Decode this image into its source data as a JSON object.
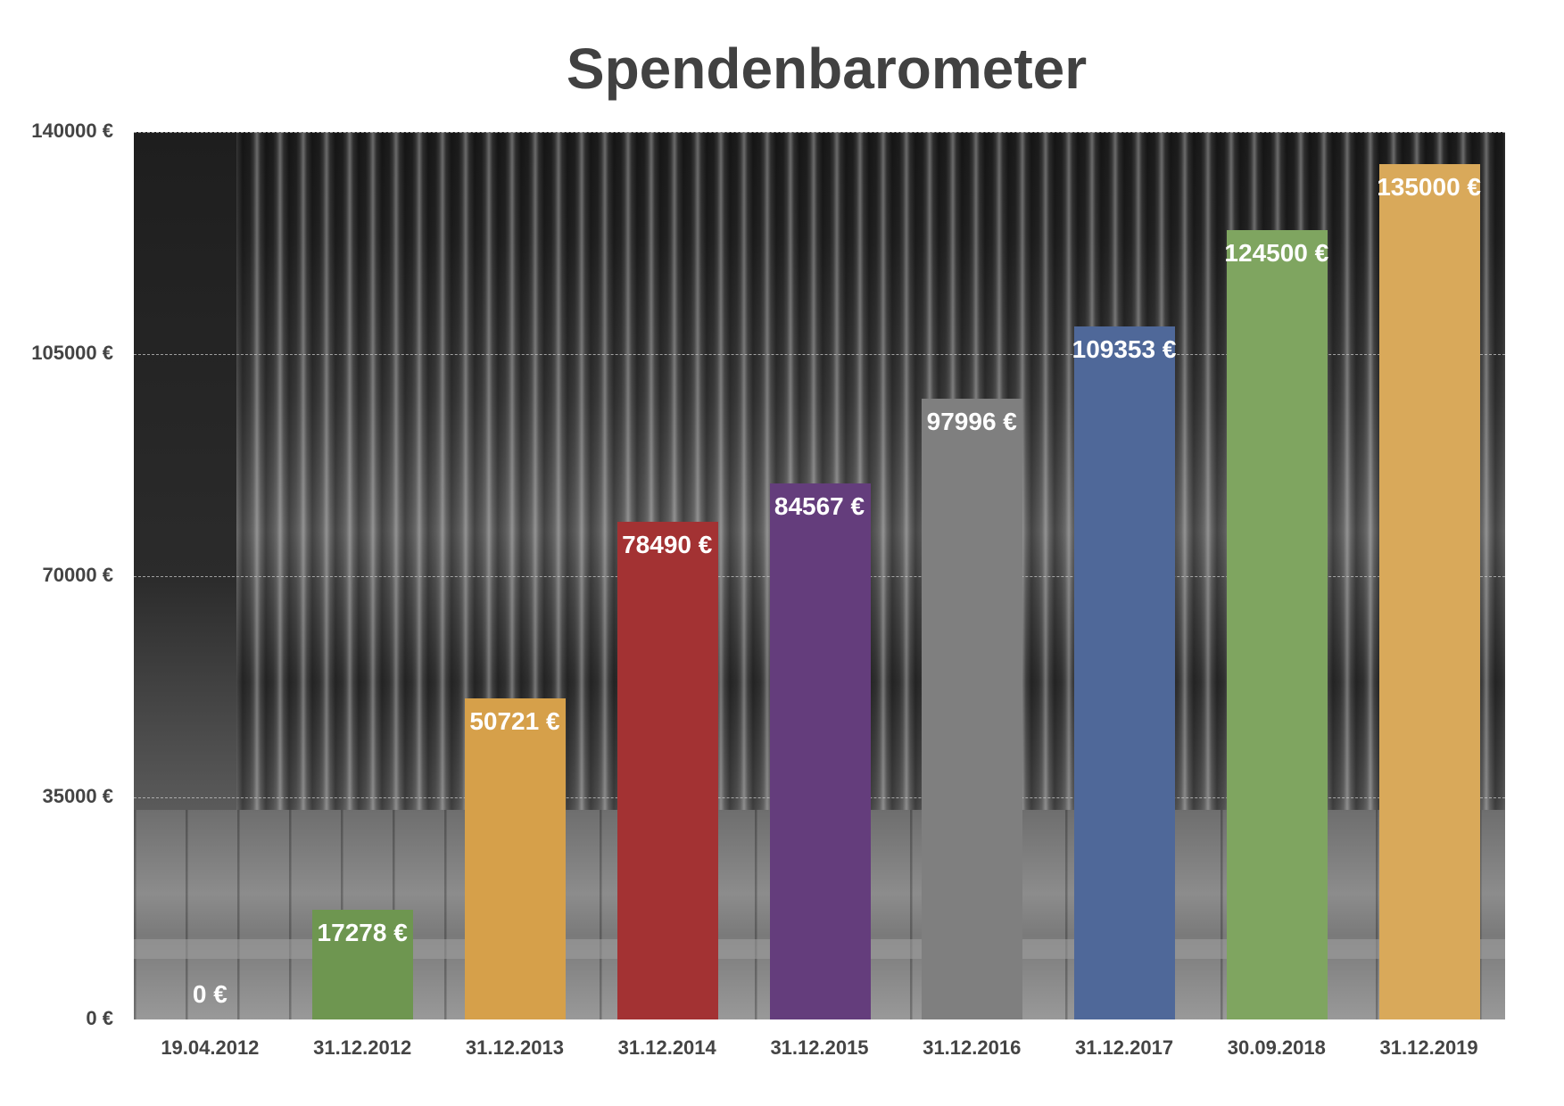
{
  "chart_data": {
    "type": "bar",
    "title": "Spendenbarometer",
    "xlabel": "",
    "ylabel": "",
    "ylim": [
      0,
      140000
    ],
    "grid": true,
    "legend": "none",
    "background": "grayscale photo of church organ pipes",
    "categories": [
      "19.04.2012",
      "31.12.2012",
      "31.12.2013",
      "31.12.2014",
      "31.12.2015",
      "31.12.2016",
      "31.12.2017",
      "30.09.2018",
      "31.12.2019"
    ],
    "values": [
      0,
      17278,
      50721,
      78490,
      84567,
      97996,
      109353,
      124500,
      135000
    ],
    "value_labels": [
      "0 €",
      "17278 €",
      "50721 €",
      "78490 €",
      "84567 €",
      "97996 €",
      "109353 €",
      "124500 €",
      "135000 €"
    ],
    "colors": [
      "#6e9650",
      "#6e9650",
      "#d6a04a",
      "#a33233",
      "#643d7c",
      "#7f7f7f",
      "#4f6899",
      "#7fa560",
      "#d9a95a"
    ],
    "yticks": [
      {
        "value": 140000,
        "label": "140000 €"
      },
      {
        "value": 105000,
        "label": "105000 €"
      },
      {
        "value": 70000,
        "label": "70000 €"
      },
      {
        "value": 35000,
        "label": "35000 €"
      },
      {
        "value": 0,
        "label": "0 €"
      }
    ]
  }
}
